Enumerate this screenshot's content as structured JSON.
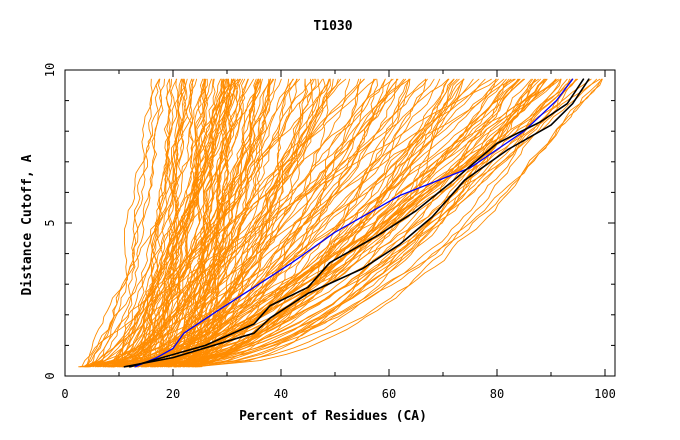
{
  "chart_data": {
    "type": "line",
    "title": "T1030",
    "xlabel": "Percent of Residues (CA)",
    "ylabel": "Distance Cutoff, A",
    "xlim": [
      0,
      100
    ],
    "ylim": [
      0,
      10
    ],
    "x_ticks": [
      "0",
      "20",
      "40",
      "60",
      "80",
      "100"
    ],
    "y_ticks": [
      "0",
      "5",
      "10"
    ],
    "grid": false,
    "legend": "none",
    "colors": {
      "background_models": "#ff8c00",
      "highlight_blue": "#0000ff",
      "highlight_black": "#000000"
    },
    "series": [
      {
        "color": "#0000ff",
        "points": [
          [
            13,
            0.3
          ],
          [
            17,
            0.6
          ],
          [
            20,
            0.9
          ],
          [
            22,
            1.4
          ],
          [
            28,
            2.1
          ],
          [
            35,
            2.9
          ],
          [
            42,
            3.7
          ],
          [
            50,
            4.7
          ],
          [
            62,
            5.9
          ],
          [
            75,
            6.8
          ],
          [
            85,
            8.0
          ],
          [
            91,
            9.0
          ],
          [
            94,
            9.7
          ]
        ]
      },
      {
        "color": "#000000",
        "points": [
          [
            12,
            0.3
          ],
          [
            18,
            0.6
          ],
          [
            26,
            1.0
          ],
          [
            35,
            1.7
          ],
          [
            38,
            2.3
          ],
          [
            45,
            2.9
          ],
          [
            49,
            3.7
          ],
          [
            58,
            4.6
          ],
          [
            65,
            5.4
          ],
          [
            72,
            6.4
          ],
          [
            80,
            7.6
          ],
          [
            88,
            8.3
          ],
          [
            93,
            8.9
          ],
          [
            96,
            9.7
          ]
        ]
      },
      {
        "color": "#000000",
        "points": [
          [
            11,
            0.3
          ],
          [
            20,
            0.6
          ],
          [
            35,
            1.4
          ],
          [
            38,
            1.9
          ],
          [
            45,
            2.7
          ],
          [
            55,
            3.5
          ],
          [
            62,
            4.3
          ],
          [
            68,
            5.2
          ],
          [
            74,
            6.4
          ],
          [
            82,
            7.4
          ],
          [
            90,
            8.2
          ],
          [
            94,
            8.9
          ],
          [
            97,
            9.7
          ]
        ]
      }
    ]
  }
}
